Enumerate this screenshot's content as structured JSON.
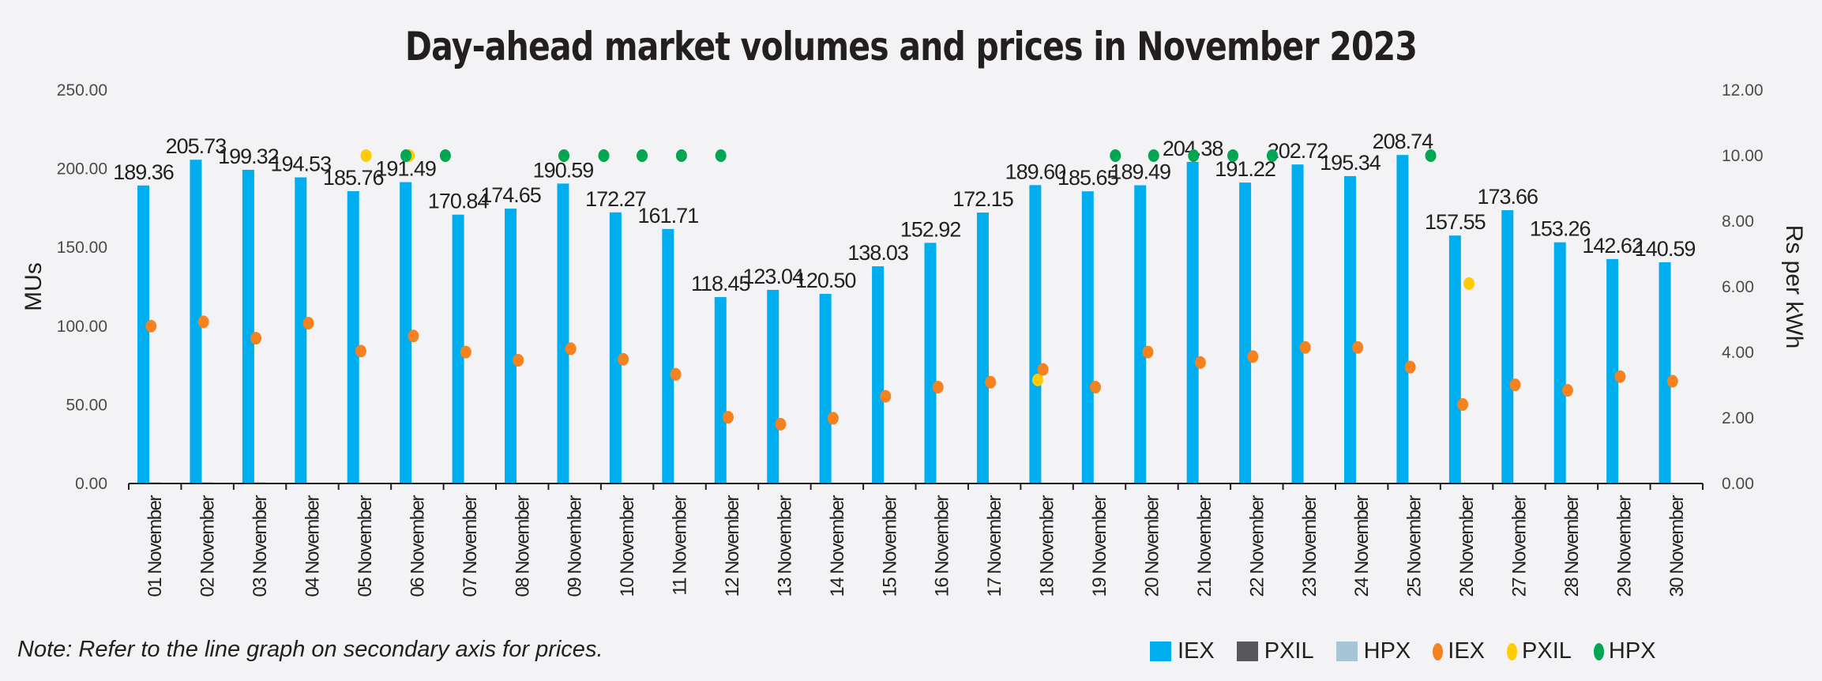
{
  "chart_data": {
    "type": "bar+scatter",
    "title": "Day-ahead market volumes and prices in November 2023",
    "ylabel": "MUs",
    "y2label": "Rs per kWh",
    "ylim": [
      0,
      250
    ],
    "y2lim": [
      0,
      12
    ],
    "yticks": [
      "0.00",
      "50.00",
      "100.00",
      "150.00",
      "200.00",
      "250.00"
    ],
    "y2ticks": [
      "0.00",
      "2.00",
      "4.00",
      "6.00",
      "8.00",
      "10.00",
      "12.00"
    ],
    "categories": [
      "01 November",
      "02 November",
      "03 November",
      "04 November",
      "05 November",
      "06 November",
      "07 November",
      "08 November",
      "09 November",
      "10 November",
      "11 November",
      "12 November",
      "13 November",
      "14 November",
      "15 November",
      "16 November",
      "17 November",
      "18 November",
      "19 November",
      "20 November",
      "21 November",
      "22 November",
      "23 November",
      "24 November",
      "25 November",
      "26 November",
      "27 November",
      "28 November",
      "29 November",
      "30 November"
    ],
    "bar_series": [
      {
        "name": "IEX",
        "color": "#00adef",
        "values": [
          189.36,
          205.73,
          199.32,
          194.53,
          185.76,
          191.49,
          170.84,
          174.65,
          190.59,
          172.27,
          161.71,
          118.45,
          123.04,
          120.5,
          138.03,
          152.92,
          172.15,
          189.6,
          185.65,
          189.49,
          204.38,
          191.22,
          202.72,
          195.34,
          208.74,
          157.55,
          173.66,
          153.26,
          142.62,
          140.59
        ],
        "labels": [
          "189.36",
          "205.73",
          "199.32",
          "194.53",
          "185.76",
          "191.49",
          "170.84",
          "174.65",
          "190.59",
          "172.27",
          "161.71",
          "118.45",
          "123.04",
          "120.50",
          "138.03",
          "152.92",
          "172.15",
          "189.60",
          "185.65",
          "189.49",
          "204.38",
          "191.22",
          "202.72",
          "195.34",
          "208.74",
          "157.55",
          "173.66",
          "153.26",
          "142.62",
          "140.59"
        ]
      },
      {
        "name": "PXIL",
        "color": "#58585a",
        "values": [
          0.6,
          0.6,
          0.6,
          0,
          0,
          0,
          0,
          0,
          0,
          0,
          0,
          0,
          0,
          0,
          0,
          0,
          0,
          0,
          0,
          0,
          0,
          0,
          0,
          0,
          0,
          0,
          0,
          0,
          0,
          0
        ]
      },
      {
        "name": "HPX",
        "color": "#a7c5d5",
        "values": [
          0,
          0,
          0,
          0,
          0,
          0,
          0,
          0,
          0,
          0,
          0,
          0,
          0,
          0,
          0,
          0,
          0,
          0,
          0,
          0,
          0,
          0,
          0,
          0,
          0,
          0,
          0,
          0,
          0,
          0
        ]
      }
    ],
    "price_series": [
      {
        "name": "IEX",
        "color": "#f58220",
        "points": [
          [
            1,
            4.8
          ],
          [
            2,
            4.93
          ],
          [
            3,
            4.43
          ],
          [
            4,
            4.89
          ],
          [
            5,
            4.04
          ],
          [
            6,
            4.5
          ],
          [
            7,
            4.01
          ],
          [
            8,
            3.76
          ],
          [
            9,
            4.11
          ],
          [
            10,
            3.79
          ],
          [
            11,
            3.33
          ],
          [
            12,
            2.02
          ],
          [
            13,
            1.81
          ],
          [
            14,
            1.99
          ],
          [
            15,
            2.66
          ],
          [
            16,
            2.94
          ],
          [
            17,
            3.09
          ],
          [
            18,
            3.48
          ],
          [
            19,
            2.94
          ],
          [
            20,
            4.01
          ],
          [
            21,
            3.69
          ],
          [
            22,
            3.87
          ],
          [
            23,
            4.15
          ],
          [
            24,
            4.15
          ],
          [
            25,
            3.55
          ],
          [
            26,
            2.41
          ],
          [
            27,
            3.01
          ],
          [
            28,
            2.84
          ],
          [
            29,
            3.26
          ],
          [
            30,
            3.12
          ]
        ]
      },
      {
        "name": "PXIL",
        "color": "#ffcb05",
        "points": [
          [
            5.1,
            10
          ],
          [
            5.92,
            10
          ],
          [
            8.87,
            10
          ],
          [
            9.63,
            10
          ],
          [
            10.36,
            10
          ],
          [
            17.9,
            3.16
          ],
          [
            26.12,
            6.1
          ]
        ]
      },
      {
        "name": "HPX",
        "color": "#00a651",
        "points": [
          [
            5.86,
            10
          ],
          [
            6.61,
            10
          ],
          [
            8.87,
            10
          ],
          [
            9.63,
            10
          ],
          [
            10.36,
            10
          ],
          [
            11.11,
            10
          ],
          [
            11.86,
            10
          ],
          [
            19.38,
            10
          ],
          [
            20.11,
            10
          ],
          [
            20.87,
            10
          ],
          [
            21.62,
            10
          ],
          [
            22.37,
            10
          ],
          [
            25.39,
            10
          ]
        ]
      }
    ],
    "legend": [
      "IEX",
      "PXIL",
      "HPX",
      "IEX",
      "PXIL",
      "HPX"
    ],
    "legend_position": "bottom-right",
    "grid": false
  },
  "note": "Note: Refer to the line graph on secondary axis for prices."
}
